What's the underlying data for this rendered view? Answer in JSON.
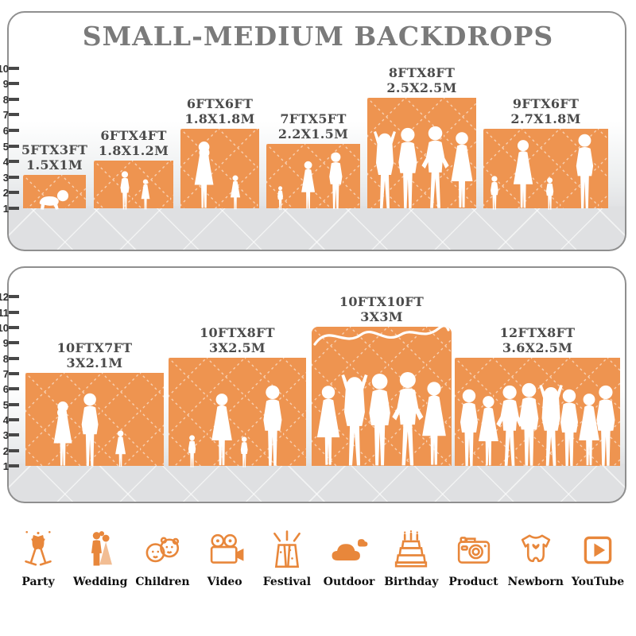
{
  "title": "SMALL-MEDIUM BACKDROPS",
  "panels": [
    {
      "id": "small-medium-top",
      "ruler_labels": [
        "1",
        "2",
        "3",
        "4",
        "5",
        "6",
        "7",
        "8",
        "9",
        "10"
      ],
      "backdrops": [
        {
          "size_ft": "5FTX3FT",
          "size_m": "1.5X1M"
        },
        {
          "size_ft": "6FTX4FT",
          "size_m": "1.8X1.2M"
        },
        {
          "size_ft": "6FTX6FT",
          "size_m": "1.8X1.8M"
        },
        {
          "size_ft": "7FTX5FT",
          "size_m": "2.2X1.5M"
        },
        {
          "size_ft": "8FTX8FT",
          "size_m": "2.5X2.5M"
        },
        {
          "size_ft": "9FTX6FT",
          "size_m": "2.7X1.8M"
        }
      ]
    },
    {
      "id": "large-bottom",
      "ruler_labels": [
        "1",
        "2",
        "3",
        "4",
        "5",
        "6",
        "7",
        "8",
        "9",
        "10",
        "11",
        "12"
      ],
      "backdrops": [
        {
          "size_ft": "10FTX7FT",
          "size_m": "3X2.1M"
        },
        {
          "size_ft": "10FTX8FT",
          "size_m": "3X2.5M"
        },
        {
          "size_ft": "10FTX10FT",
          "size_m": "3X3M"
        },
        {
          "size_ft": "12FTX8FT",
          "size_m": "3.6X2.5M"
        }
      ]
    }
  ],
  "categories": [
    {
      "label": "Party",
      "icon": "party-icon"
    },
    {
      "label": "Wedding",
      "icon": "wedding-icon"
    },
    {
      "label": "Children",
      "icon": "children-icon"
    },
    {
      "label": "Video",
      "icon": "video-icon"
    },
    {
      "label": "Festival",
      "icon": "festival-icon"
    },
    {
      "label": "Outdoor",
      "icon": "outdoor-icon"
    },
    {
      "label": "Birthday",
      "icon": "birthday-icon"
    },
    {
      "label": "Product",
      "icon": "product-icon"
    },
    {
      "label": "Newborn",
      "icon": "newborn-icon"
    },
    {
      "label": "YouTube",
      "icon": "youtube-icon"
    }
  ],
  "colors": {
    "backdrop_orange": "#EE9450",
    "icon_orange": "#E8873B",
    "title_gray": "#7A7A7A",
    "label_gray": "#4B4B4B",
    "floor_gray": "#DFE0E2"
  }
}
